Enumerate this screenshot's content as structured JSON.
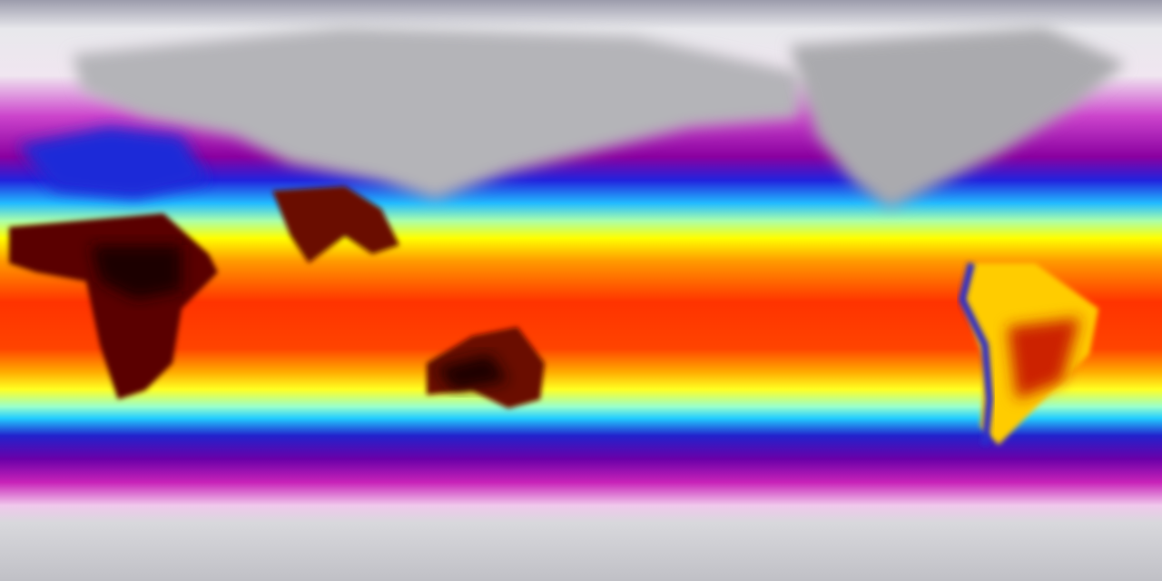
{
  "map": {
    "projection": "equirectangular",
    "colormap": [
      "#f0f0f0",
      "#d8d8dc",
      "#f0d0f0",
      "#cc33cc",
      "#7a0099",
      "#2020e0",
      "#00ccff",
      "#aaffaa",
      "#ffff00",
      "#ff8800",
      "#ff2200",
      "#cc0000",
      "#3a0000"
    ],
    "land_color_cold": "#9a9a9a",
    "land_color_hot": "#2a0000"
  }
}
